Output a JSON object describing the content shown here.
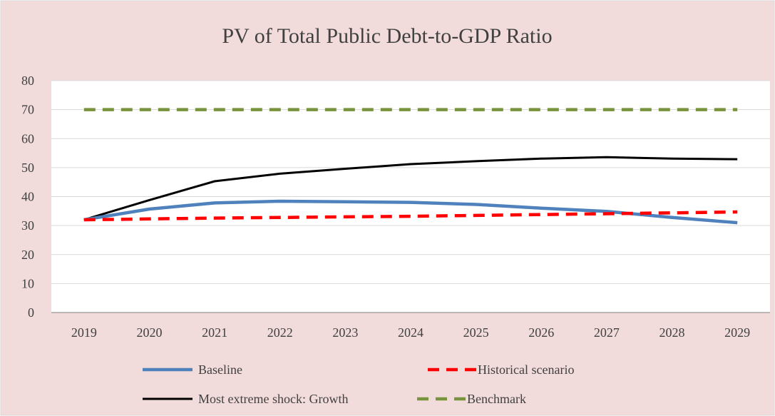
{
  "chart_data": {
    "type": "line",
    "title": "PV of Total Public Debt-to-GDP Ratio",
    "xlabel": "",
    "ylabel": "",
    "categories": [
      "2019",
      "2020",
      "2021",
      "2022",
      "2023",
      "2024",
      "2025",
      "2026",
      "2027",
      "2028",
      "2029"
    ],
    "ylim": [
      0,
      80
    ],
    "yticks": [
      "0",
      "10",
      "20",
      "30",
      "40",
      "50",
      "60",
      "70",
      "80"
    ],
    "grid": true,
    "legend_position": "bottom",
    "series": [
      {
        "name": "Baseline",
        "color": "#4f81bd",
        "style": "solid",
        "values": [
          32,
          35.7,
          37.8,
          38.4,
          38.2,
          38.0,
          37.3,
          36.0,
          34.9,
          32.8,
          31.0
        ]
      },
      {
        "name": "Historical scenario",
        "color": "#ff0000",
        "style": "dash",
        "values": [
          32,
          32.3,
          32.6,
          32.8,
          33.0,
          33.2,
          33.5,
          33.8,
          34.1,
          34.4,
          34.7
        ]
      },
      {
        "name": "Most extreme shock: Growth",
        "color": "#000000",
        "style": "solid",
        "values": [
          32,
          38.8,
          45.3,
          47.9,
          49.6,
          51.2,
          52.2,
          53.1,
          53.6,
          53.1,
          52.9
        ]
      },
      {
        "name": "Benchmark",
        "color": "#77933c",
        "style": "dash",
        "values": [
          70,
          70,
          70,
          70,
          70,
          70,
          70,
          70,
          70,
          70,
          70
        ]
      }
    ],
    "background_color": "#f2dcdb",
    "plot_background_color": "#ffffff",
    "gridline_color": "#d9d9d9"
  }
}
